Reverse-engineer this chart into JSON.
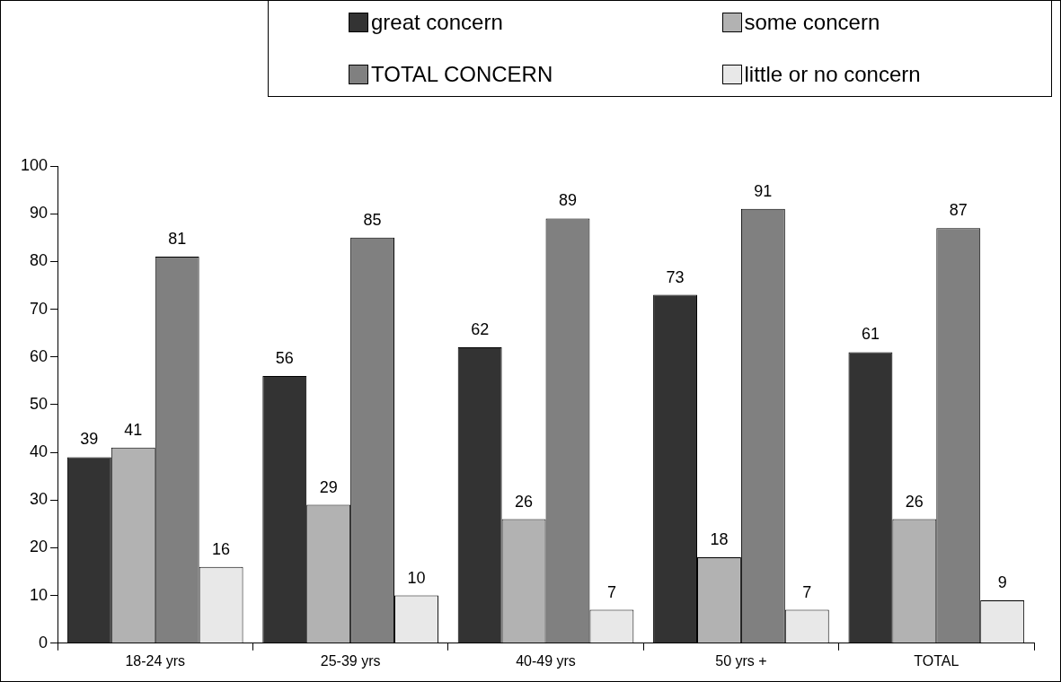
{
  "chart_data": {
    "type": "bar",
    "categories": [
      "18-24 yrs",
      "25-39 yrs",
      "40-49 yrs",
      "50 yrs +",
      "TOTAL"
    ],
    "series": [
      {
        "name": "great concern",
        "color": "#333333",
        "values": [
          39,
          56,
          62,
          73,
          61
        ]
      },
      {
        "name": "some concern",
        "color": "#b2b2b2",
        "values": [
          41,
          29,
          26,
          18,
          26
        ]
      },
      {
        "name": "TOTAL CONCERN",
        "color": "#808080",
        "values": [
          81,
          85,
          89,
          91,
          87
        ]
      },
      {
        "name": "little or no concern",
        "color": "#e8e8e8",
        "values": [
          16,
          10,
          7,
          7,
          9
        ]
      }
    ],
    "ylim": [
      0,
      100
    ],
    "yticks": [
      0,
      10,
      20,
      30,
      40,
      50,
      60,
      70,
      80,
      90,
      100
    ],
    "grid": false,
    "legend": "top right",
    "data_labels": true
  }
}
